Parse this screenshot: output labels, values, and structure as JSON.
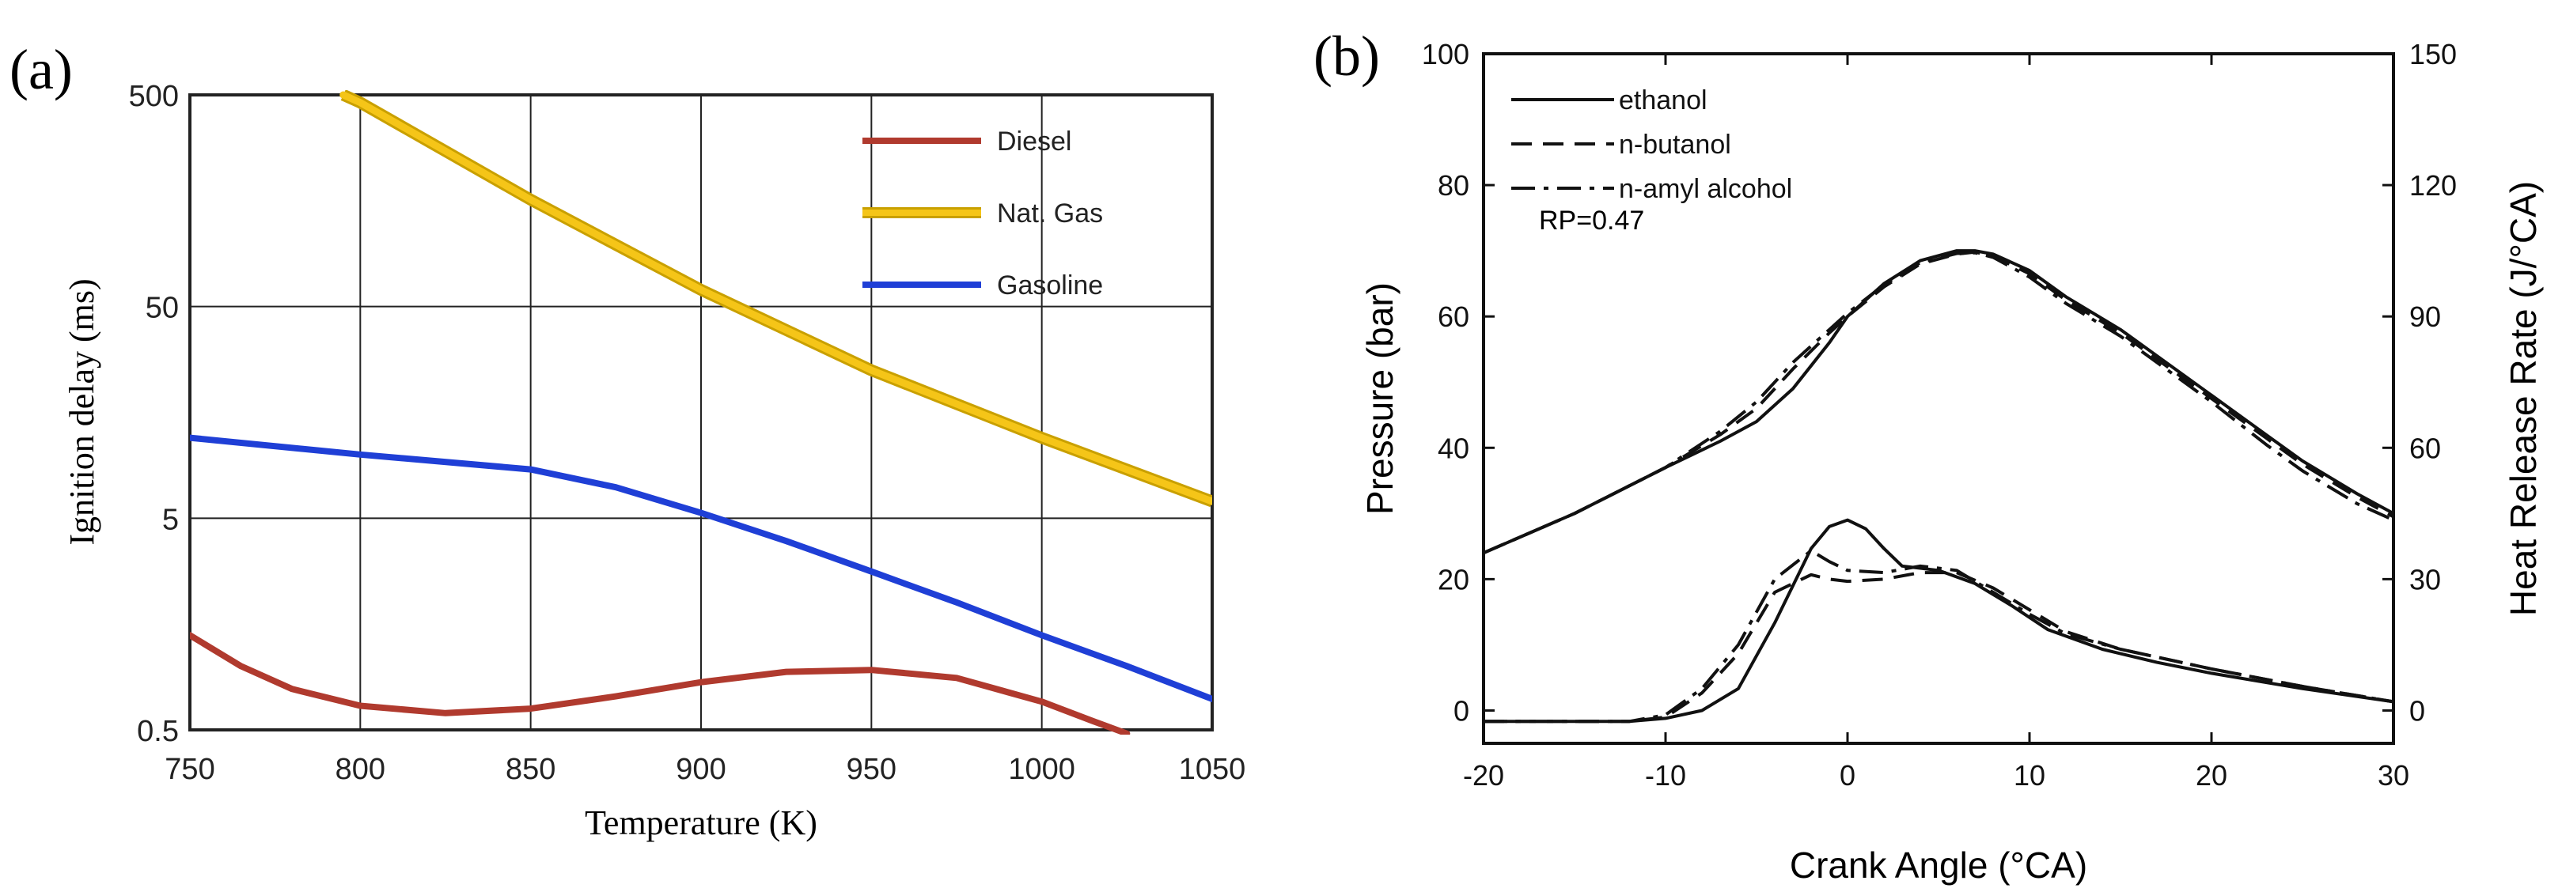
{
  "chart_data": [
    {
      "panel_label": "(a)",
      "type": "line",
      "xlabel": "Temperature (K)",
      "ylabel": "Ignition delay (ms)",
      "xlim": [
        750,
        1050
      ],
      "ylim": [
        0.5,
        500
      ],
      "yscale": "log",
      "xticks": [
        750,
        800,
        850,
        900,
        950,
        1000,
        1050
      ],
      "xtick_labels": [
        "750",
        "800",
        "850",
        "900",
        "950",
        "1000",
        "1050"
      ],
      "yticks": [
        0.5,
        5,
        50,
        500
      ],
      "ytick_labels": [
        "0.5",
        "5",
        "50",
        "500"
      ],
      "grid": true,
      "legend_position": "top-right",
      "series": [
        {
          "name": "Diesel",
          "color": "#b03a2e",
          "x": [
            750,
            765,
            780,
            800,
            825,
            850,
            875,
            900,
            925,
            950,
            975,
            1000,
            1015,
            1025
          ],
          "y": [
            1.4,
            1.0,
            0.78,
            0.65,
            0.6,
            0.63,
            0.72,
            0.84,
            0.94,
            0.96,
            0.88,
            0.68,
            0.55,
            0.48
          ]
        },
        {
          "name": "Nat. Gas",
          "color": "#f5c518",
          "x": [
            795,
            800,
            850,
            900,
            950,
            1000,
            1050
          ],
          "y": [
            500,
            460,
            160,
            60,
            25,
            12,
            6
          ]
        },
        {
          "name": "Gasoline",
          "color": "#1f3fd6",
          "x": [
            750,
            800,
            850,
            875,
            900,
            925,
            950,
            975,
            1000,
            1025,
            1050
          ],
          "y": [
            12,
            10,
            8.5,
            7.0,
            5.3,
            3.9,
            2.8,
            2.0,
            1.4,
            1.0,
            0.7
          ]
        }
      ]
    },
    {
      "panel_label": "(b)",
      "type": "line",
      "xlabel": "Crank Angle (°CA)",
      "ylabel": "Pressure (bar)",
      "y2label": "Heat Release Rate (J/°CA)",
      "xlim": [
        -20,
        30
      ],
      "ylim": [
        -5,
        100
      ],
      "y2lim": [
        -7.5,
        150
      ],
      "xticks": [
        -20,
        -10,
        0,
        10,
        20,
        30
      ],
      "xtick_labels": [
        "-20",
        "-10",
        "0",
        "10",
        "20",
        "30"
      ],
      "yticks": [
        0,
        20,
        40,
        60,
        80,
        100
      ],
      "ytick_labels": [
        "0",
        "20",
        "40",
        "60",
        "80",
        "100"
      ],
      "y2ticks": [
        0,
        30,
        60,
        90,
        120,
        150
      ],
      "y2tick_labels": [
        "0",
        "30",
        "60",
        "90",
        "120",
        "150"
      ],
      "grid": false,
      "legend_position": "top-left",
      "annotation": "RP=0.47",
      "pressure_series": [
        {
          "name": "ethanol",
          "dash": "solid",
          "x": [
            -20,
            -15,
            -10,
            -7,
            -5,
            -3,
            -1,
            0,
            2,
            4,
            6,
            7,
            8,
            10,
            12,
            15,
            18,
            20,
            23,
            25,
            28,
            30
          ],
          "y": [
            24,
            30,
            37,
            41,
            44,
            49,
            56,
            60,
            65,
            68.5,
            70,
            70,
            69.5,
            67,
            63,
            58,
            52,
            48,
            42,
            38,
            33,
            30
          ]
        },
        {
          "name": "n-butanol",
          "dash": "dashed",
          "x": [
            -20,
            -15,
            -10,
            -7,
            -5,
            -3,
            -1,
            0,
            2,
            4,
            6,
            7,
            8,
            10,
            12,
            15,
            18,
            20,
            23,
            25,
            28,
            30
          ],
          "y": [
            24,
            30,
            37,
            42,
            46,
            52,
            57.5,
            60,
            64.5,
            68,
            69.5,
            69.8,
            69.2,
            66.5,
            62.5,
            57.5,
            51.5,
            47.5,
            41.5,
            37.5,
            32.5,
            29.5
          ]
        },
        {
          "name": "n-amyl alcohol",
          "dash": "dashdot",
          "x": [
            -20,
            -15,
            -10,
            -7,
            -5,
            -3,
            -1,
            0,
            2,
            4,
            6,
            7,
            8,
            10,
            12,
            15,
            18,
            20,
            23,
            25,
            28,
            30
          ],
          "y": [
            24,
            30,
            37,
            42.5,
            47,
            53,
            58,
            60.5,
            64.8,
            68.2,
            69.6,
            69.7,
            69,
            66,
            62,
            57,
            51,
            47,
            40.5,
            36.5,
            31.5,
            29
          ]
        }
      ],
      "hrr_series": [
        {
          "name": "ethanol",
          "dash": "solid",
          "x": [
            -20,
            -12,
            -10,
            -8,
            -6,
            -4,
            -2,
            -1,
            0,
            1,
            2,
            3,
            5,
            7,
            9,
            11,
            14,
            17,
            20,
            25,
            30
          ],
          "y": [
            -2.5,
            -2.5,
            -1.8,
            0,
            5,
            20,
            37,
            42,
            43.5,
            41.5,
            37,
            33,
            32,
            29,
            24,
            18.5,
            14,
            11,
            8.5,
            5,
            2
          ]
        },
        {
          "name": "n-butanol",
          "dash": "dashed",
          "x": [
            -20,
            -12,
            -10,
            -8,
            -6,
            -4,
            -2,
            -1,
            0,
            2,
            4,
            6,
            8,
            10,
            12,
            15,
            20,
            25,
            30
          ],
          "y": [
            -2.5,
            -2.5,
            -1.5,
            4,
            13,
            27,
            31,
            30,
            29.5,
            30,
            31.5,
            31.5,
            28,
            23,
            18,
            14,
            9.5,
            5.5,
            2
          ]
        },
        {
          "name": "n-amyl alcohol",
          "dash": "dashdot",
          "x": [
            -20,
            -12,
            -10,
            -8,
            -6,
            -4,
            -2,
            -1,
            0,
            2,
            4,
            6,
            8,
            10,
            12,
            15,
            20,
            25,
            30
          ],
          "y": [
            -2.5,
            -2.5,
            -1,
            5,
            15,
            30,
            36.5,
            34,
            32,
            31.5,
            33,
            32,
            27,
            22,
            17.5,
            14,
            9.5,
            5.5,
            2
          ]
        }
      ]
    }
  ]
}
